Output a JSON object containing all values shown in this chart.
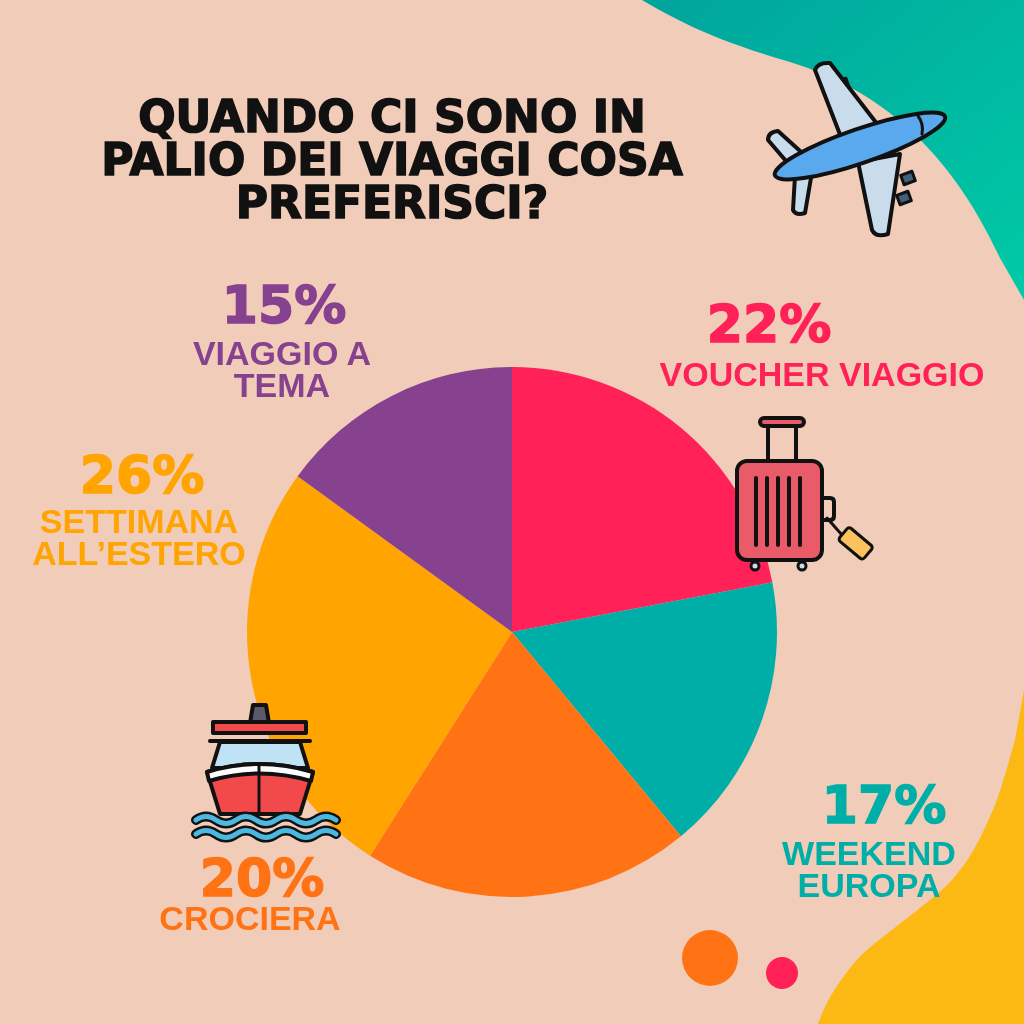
{
  "chart_data": {
    "type": "pie",
    "title": "QUANDO CI SONO IN PALIO DEI VIAGGI COSA PREFERISCI?",
    "categories": [
      "VOUCHER VIAGGIO",
      "WEEKEND EUROPA",
      "CROCIERA",
      "SETTIMANA ALL’ESTERO",
      "VIAGGIO A TEMA"
    ],
    "values": [
      22,
      17,
      20,
      26,
      15
    ],
    "colors": [
      "#ff2157",
      "#00aea8",
      "#ff7315",
      "#ffa400",
      "#86418f"
    ],
    "value_labels": [
      "22%",
      "17%",
      "20%",
      "26%",
      "15%"
    ]
  }
}
